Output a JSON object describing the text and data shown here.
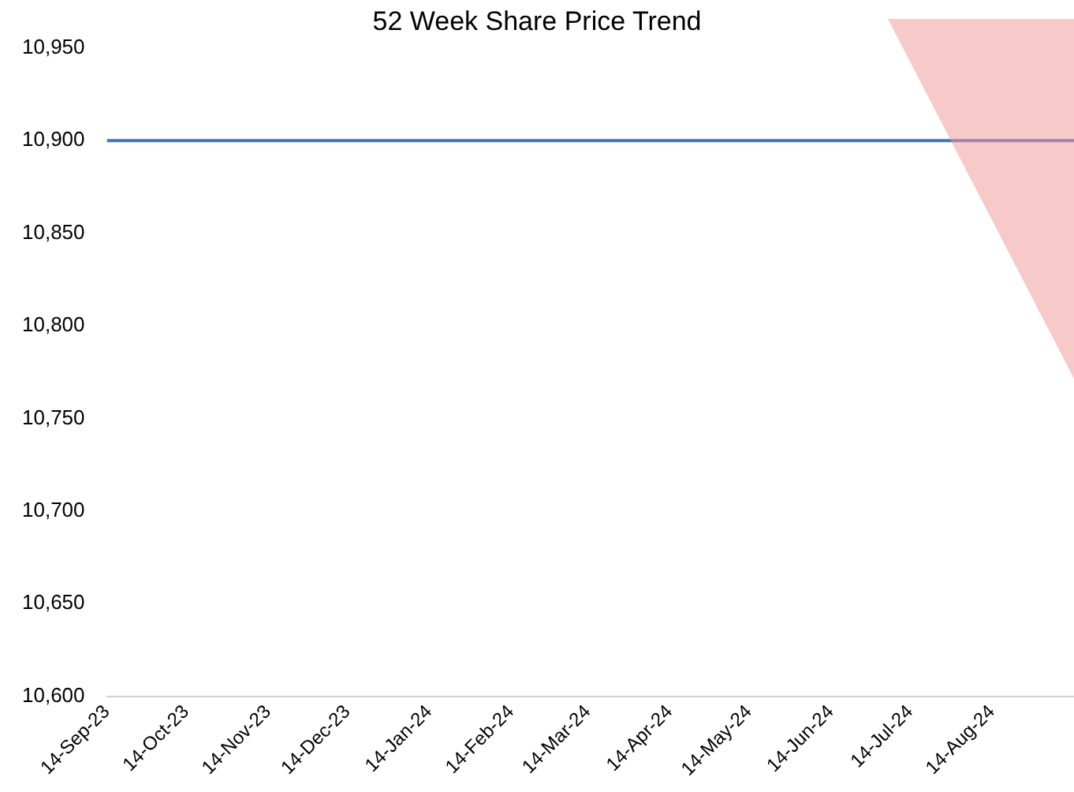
{
  "chart_data": {
    "type": "line",
    "title": "52 Week Share Price Trend",
    "x": [
      "2023-09-14",
      "2024-09-14"
    ],
    "series": [
      {
        "color": "#4472c4",
        "values": [
          10900,
          10900
        ]
      }
    ],
    "xlim": [
      "2023-09-14",
      "2024-09-14"
    ],
    "xticks": [
      {
        "value": "2023-09-14",
        "label": "14-Sep-23"
      },
      {
        "value": "2023-10-14",
        "label": "14-Oct-23"
      },
      {
        "value": "2023-11-14",
        "label": "14-Nov-23"
      },
      {
        "value": "2023-12-14",
        "label": "14-Dec-23"
      },
      {
        "value": "2024-01-14",
        "label": "14-Jan-24"
      },
      {
        "value": "2024-02-14",
        "label": "14-Feb-24"
      },
      {
        "value": "2024-03-14",
        "label": "14-Mar-24"
      },
      {
        "value": "2024-04-14",
        "label": "14-Apr-24"
      },
      {
        "value": "2024-05-14",
        "label": "14-May-24"
      },
      {
        "value": "2024-06-14",
        "label": "14-Jun-24"
      },
      {
        "value": "2024-07-14",
        "label": "14-Jul-24"
      },
      {
        "value": "2024-08-14",
        "label": "14-Aug-24"
      }
    ],
    "ylim": [
      10600,
      10950
    ],
    "yticks": [
      {
        "value": 10600,
        "label": "10,600"
      },
      {
        "value": 10650,
        "label": "10,650"
      },
      {
        "value": 10700,
        "label": "10,700"
      },
      {
        "value": 10750,
        "label": "10,750"
      },
      {
        "value": 10800,
        "label": "10,800"
      },
      {
        "value": 10850,
        "label": "10,850"
      },
      {
        "value": 10900,
        "label": "10,900"
      },
      {
        "value": 10950,
        "label": "10,950"
      }
    ],
    "grid": false,
    "legend": false,
    "marker": "none",
    "line_style": "solid"
  }
}
